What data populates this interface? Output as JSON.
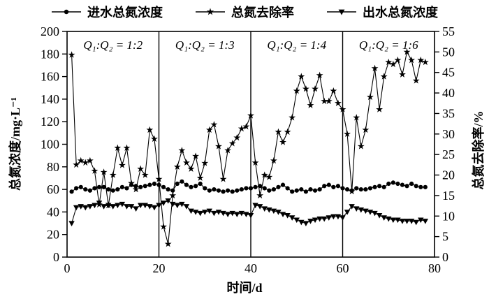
{
  "legend": {
    "items": [
      {
        "label": "进水总氮浓度",
        "marker": "circle"
      },
      {
        "label": "总氮去除率",
        "marker": "star"
      },
      {
        "label": "出水总氮浓度",
        "marker": "triangle-down"
      }
    ]
  },
  "chart_data": {
    "type": "line",
    "title": "",
    "xlabel": "时间/d",
    "ylabel_left": "总氮浓度/mg·L⁻¹",
    "ylabel_right": "总氮去除率/%",
    "x_range": [
      0,
      80
    ],
    "x_ticks": [
      0,
      20,
      40,
      60,
      80
    ],
    "y_left_range": [
      0,
      200
    ],
    "y_left_tick_step": 20,
    "y_right_range": [
      0,
      55
    ],
    "y_right_tick_step": 5,
    "grid": false,
    "legend_position": "top",
    "phase_dividers": [
      20,
      40,
      60
    ],
    "phase_labels": [
      {
        "text": "Q₁:Q₂ = 1:2",
        "x_center": 10
      },
      {
        "text": "Q₁:Q₂ = 1:3",
        "x_center": 30
      },
      {
        "text": "Q₁:Q₂ = 1:4",
        "x_center": 50
      },
      {
        "text": "Q₁:Q₂ = 1:6",
        "x_center": 70
      }
    ],
    "x_start": 1,
    "x_step": 1,
    "line_color": "#000000",
    "series": [
      {
        "name": "进水总氮浓度",
        "axis": "left",
        "marker": "circle",
        "values": [
          58,
          61,
          62,
          60,
          59,
          61,
          62,
          62,
          60,
          59,
          60,
          62,
          61,
          64,
          63,
          62,
          63,
          64,
          65,
          64,
          62,
          60,
          59,
          65,
          67,
          64,
          62,
          63,
          65,
          61,
          59,
          60,
          59,
          58,
          59,
          58,
          59,
          60,
          61,
          61,
          62,
          63,
          61,
          59,
          60,
          62,
          64,
          61,
          58,
          59,
          60,
          58,
          60,
          59,
          60,
          63,
          64,
          62,
          63,
          61,
          60,
          59,
          61,
          60,
          60,
          61,
          62,
          63,
          62,
          65,
          66,
          65,
          64,
          63,
          65,
          63,
          62,
          62
        ]
      },
      {
        "name": "总氮去除率",
        "axis": "right",
        "marker": "star",
        "values": [
          49.3,
          22.5,
          23.5,
          23,
          23.5,
          21,
          12.8,
          20.7,
          12.6,
          20,
          26.6,
          22.4,
          26.6,
          18,
          16.5,
          21.5,
          20,
          31,
          28.8,
          19,
          7.4,
          3.2,
          15,
          22,
          26,
          23,
          21.5,
          24.6,
          19.3,
          22.9,
          31,
          32.3,
          27,
          19,
          26,
          27.7,
          29.1,
          31.3,
          31.8,
          34.5,
          23,
          15,
          20,
          19.5,
          23.5,
          30.5,
          28,
          30.5,
          34,
          40.5,
          44,
          41,
          37,
          41,
          44.3,
          38,
          38,
          40.5,
          37.5,
          36,
          30,
          16,
          34,
          27,
          31,
          39,
          46,
          36,
          44,
          47.5,
          47,
          48,
          44.5,
          50,
          48,
          43,
          48,
          47.5
        ]
      },
      {
        "name": "出水总氮浓度",
        "axis": "left",
        "marker": "triangle-down",
        "values": [
          30,
          44,
          45,
          44,
          45,
          46,
          48,
          45,
          46,
          45,
          46,
          47,
          45,
          45,
          43,
          46,
          46,
          45,
          44,
          46,
          48,
          50,
          47,
          46,
          47,
          45,
          41,
          40,
          39,
          40,
          41,
          39,
          40,
          39,
          38,
          39,
          38,
          39,
          38,
          37,
          46,
          45,
          43,
          42,
          41,
          40,
          38,
          37,
          35,
          33,
          31,
          30,
          32,
          33,
          34,
          34,
          35,
          36,
          36,
          35,
          40,
          45,
          43,
          42,
          41,
          40,
          39,
          37,
          35,
          34,
          33,
          33,
          32,
          32,
          32,
          31,
          33,
          32
        ]
      }
    ]
  }
}
